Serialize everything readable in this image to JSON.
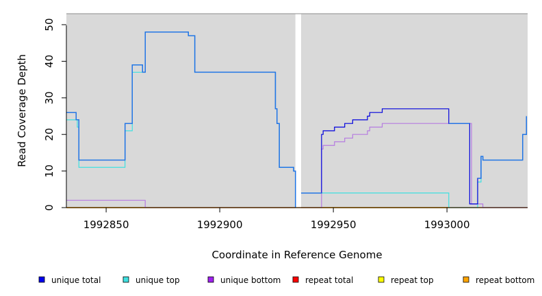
{
  "chart_data": {
    "type": "line",
    "title": "",
    "xlabel": "Coordinate in Reference Genome",
    "ylabel": "Read Coverage Depth",
    "xlim": [
      1992832.5,
      1993035.5
    ],
    "ylim": [
      0,
      53
    ],
    "x_ticks": [
      1992850,
      1992900,
      1992950,
      1993000
    ],
    "x_tick_labels": [
      "1992850",
      "1992900",
      "1992950",
      "1993000"
    ],
    "y_ticks": [
      0,
      10,
      20,
      30,
      40,
      50
    ],
    "y_tick_labels": [
      "0",
      "10",
      "20",
      "30",
      "40",
      "50"
    ],
    "background": "#d9d9d9",
    "grid": false,
    "gap_region": [
      1992933.3,
      1992935.8
    ],
    "legend_position": "bottom",
    "series": [
      {
        "name": "repeat total",
        "color": "#ff0000",
        "width": 1.2,
        "points": [
          [
            1992832.5,
            0
          ],
          [
            1993035.5,
            0
          ]
        ]
      },
      {
        "name": "repeat top",
        "color": "#e6e600",
        "width": 1.2,
        "points": [
          [
            1992832.5,
            0
          ],
          [
            1993035.5,
            0
          ]
        ]
      },
      {
        "name": "repeat bottom",
        "color": "#ffa500",
        "width": 1.5,
        "points": [
          [
            1992832.5,
            0
          ],
          [
            1992933.3,
            0
          ],
          [
            1992935.8,
            null
          ],
          [
            1992935.8,
            0
          ],
          [
            1993000.8,
            0
          ]
        ]
      },
      {
        "name": "unique bottom",
        "color": "#b57be0",
        "width": 1.2,
        "points": [
          [
            1992832.5,
            2
          ],
          [
            1992867.2,
            2
          ],
          [
            1992867.2,
            0
          ],
          [
            1992933.3,
            0
          ],
          [
            1992935.8,
            null
          ],
          [
            1992935.8,
            0
          ],
          [
            1992944.8,
            0
          ],
          [
            1992944.8,
            16
          ],
          [
            1992945.5,
            16
          ],
          [
            1992945.5,
            17
          ],
          [
            1992950.5,
            17
          ],
          [
            1992950.5,
            18
          ],
          [
            1992955.0,
            18
          ],
          [
            1992955.0,
            19
          ],
          [
            1992958.5,
            19
          ],
          [
            1992958.5,
            20
          ],
          [
            1992965.0,
            20
          ],
          [
            1992965.0,
            21
          ],
          [
            1992966.0,
            21
          ],
          [
            1992966.0,
            22
          ],
          [
            1992971.5,
            22
          ],
          [
            1992971.5,
            23
          ],
          [
            1993010.8,
            23
          ],
          [
            1993010.8,
            1
          ],
          [
            1993015.8,
            1
          ],
          [
            1993015.8,
            0
          ],
          [
            1993035.5,
            0
          ]
        ]
      },
      {
        "name": "unique top",
        "color": "#40e0e0",
        "width": 1.2,
        "points": [
          [
            1992832.5,
            24
          ],
          [
            1992837.3,
            24
          ],
          [
            1992837.3,
            22
          ],
          [
            1992838.0,
            22
          ],
          [
            1992838.0,
            11
          ],
          [
            1992858.3,
            11
          ],
          [
            1992858.3,
            21
          ],
          [
            1992861.5,
            21
          ],
          [
            1992861.5,
            37
          ],
          [
            1992867.2,
            37
          ],
          [
            1992867.2,
            48
          ],
          [
            1992886.2,
            48
          ],
          [
            1992886.2,
            47
          ],
          [
            1992889.0,
            47
          ],
          [
            1992889.0,
            37
          ],
          [
            1992924.5,
            37
          ],
          [
            1992924.5,
            27
          ],
          [
            1992925.2,
            27
          ],
          [
            1992925.2,
            23
          ],
          [
            1992926.2,
            23
          ],
          [
            1992926.2,
            11
          ],
          [
            1992932.5,
            11
          ],
          [
            1992932.5,
            10
          ],
          [
            1992933.3,
            10
          ],
          [
            1992933.3,
            0
          ],
          [
            1992935.8,
            null
          ],
          [
            1992935.8,
            4
          ],
          [
            1993000.8,
            4
          ],
          [
            1993000.8,
            0
          ],
          [
            1993013.5,
            0
          ],
          [
            1993013.5,
            7
          ],
          [
            1993015.0,
            7
          ],
          [
            1993015.0,
            14
          ],
          [
            1993015.8,
            14
          ],
          [
            1993015.8,
            13
          ],
          [
            1993033.3,
            13
          ],
          [
            1993033.3,
            20
          ],
          [
            1993035.0,
            20
          ],
          [
            1993035.0,
            25
          ]
        ]
      },
      {
        "name": "unique total",
        "color": "#0000dd",
        "width": 1.2,
        "points": [
          [
            1992832.5,
            26
          ],
          [
            1992836.8,
            26
          ],
          [
            1992836.8,
            24
          ],
          [
            1992838.0,
            24
          ],
          [
            1992838.0,
            13
          ],
          [
            1992858.3,
            13
          ],
          [
            1992858.3,
            23
          ],
          [
            1992861.5,
            23
          ],
          [
            1992861.5,
            39
          ],
          [
            1992866.0,
            39
          ],
          [
            1992866.0,
            37
          ],
          [
            1992867.2,
            37
          ],
          [
            1992867.2,
            48
          ],
          [
            1992886.2,
            48
          ],
          [
            1992886.2,
            47
          ],
          [
            1992889.0,
            47
          ],
          [
            1992889.0,
            37
          ],
          [
            1992924.5,
            37
          ],
          [
            1992924.5,
            27
          ],
          [
            1992925.2,
            27
          ],
          [
            1992925.2,
            23
          ],
          [
            1992926.2,
            23
          ],
          [
            1992926.2,
            11
          ],
          [
            1992932.5,
            11
          ],
          [
            1992932.5,
            10
          ],
          [
            1992933.3,
            10
          ],
          [
            1992933.3,
            0
          ],
          [
            1992935.8,
            null
          ],
          [
            1992935.8,
            4
          ],
          [
            1992944.8,
            4
          ],
          [
            1992944.8,
            20
          ],
          [
            1992945.5,
            20
          ],
          [
            1992945.5,
            21
          ],
          [
            1992950.5,
            21
          ],
          [
            1992950.5,
            22
          ],
          [
            1992955.0,
            22
          ],
          [
            1992955.0,
            23
          ],
          [
            1992958.5,
            23
          ],
          [
            1992958.5,
            24
          ],
          [
            1992965.0,
            24
          ],
          [
            1992965.0,
            25
          ],
          [
            1992966.0,
            25
          ],
          [
            1992966.0,
            26
          ],
          [
            1992971.5,
            26
          ],
          [
            1992971.5,
            27
          ],
          [
            1993000.8,
            27
          ],
          [
            1993000.8,
            23
          ],
          [
            1993010.0,
            23
          ],
          [
            1993010.0,
            1
          ],
          [
            1993013.5,
            1
          ],
          [
            1993013.5,
            8
          ],
          [
            1993015.0,
            8
          ],
          [
            1993015.0,
            14
          ],
          [
            1993015.8,
            14
          ],
          [
            1993015.8,
            13
          ],
          [
            1993033.3,
            13
          ],
          [
            1993033.3,
            20
          ],
          [
            1993035.0,
            20
          ],
          [
            1993035.0,
            25
          ]
        ]
      },
      {
        "name": "",
        "color": "#1f77e6",
        "width": 1.4,
        "points": [
          [
            1992832.5,
            26
          ],
          [
            1992836.8,
            26
          ],
          [
            1992836.8,
            24
          ],
          [
            1992838.0,
            24
          ],
          [
            1992838.0,
            13
          ],
          [
            1992858.3,
            13
          ],
          [
            1992858.3,
            23
          ],
          [
            1992861.5,
            23
          ],
          [
            1992861.5,
            39
          ],
          [
            1992866.0,
            39
          ],
          [
            1992866.0,
            37
          ],
          [
            1992867.2,
            37
          ],
          [
            1992867.2,
            48
          ],
          [
            1992886.2,
            48
          ],
          [
            1992886.2,
            47
          ],
          [
            1992889.0,
            47
          ],
          [
            1992889.0,
            37
          ],
          [
            1992924.5,
            37
          ],
          [
            1992924.5,
            27
          ],
          [
            1992925.2,
            27
          ],
          [
            1992925.2,
            23
          ],
          [
            1992926.2,
            23
          ],
          [
            1992926.2,
            11
          ],
          [
            1992932.5,
            11
          ],
          [
            1992932.5,
            10
          ],
          [
            1992933.3,
            10
          ],
          [
            1992933.3,
            0
          ],
          [
            1992935.8,
            null
          ],
          [
            1992935.8,
            4
          ],
          [
            1992944.8,
            4
          ],
          [
            1993000.8,
            null
          ],
          [
            1993000.8,
            23
          ],
          [
            1993010.0,
            23
          ],
          [
            1993013.5,
            null
          ],
          [
            1993013.5,
            8
          ],
          [
            1993015.0,
            8
          ],
          [
            1993015.0,
            14
          ],
          [
            1993015.8,
            14
          ],
          [
            1993015.8,
            13
          ],
          [
            1993033.3,
            13
          ],
          [
            1993033.3,
            20
          ],
          [
            1993035.0,
            20
          ],
          [
            1993035.0,
            25
          ]
        ]
      }
    ]
  },
  "legend": {
    "items": [
      {
        "label": "unique total",
        "color": "#0000ee"
      },
      {
        "label": "unique top",
        "color": "#40e0e0"
      },
      {
        "label": "unique bottom",
        "color": "#a020f0"
      },
      {
        "label": "repeat total",
        "color": "#ff0000"
      },
      {
        "label": "repeat top",
        "color": "#ffff00"
      },
      {
        "label": "repeat bottom",
        "color": "#ffa500"
      }
    ]
  }
}
